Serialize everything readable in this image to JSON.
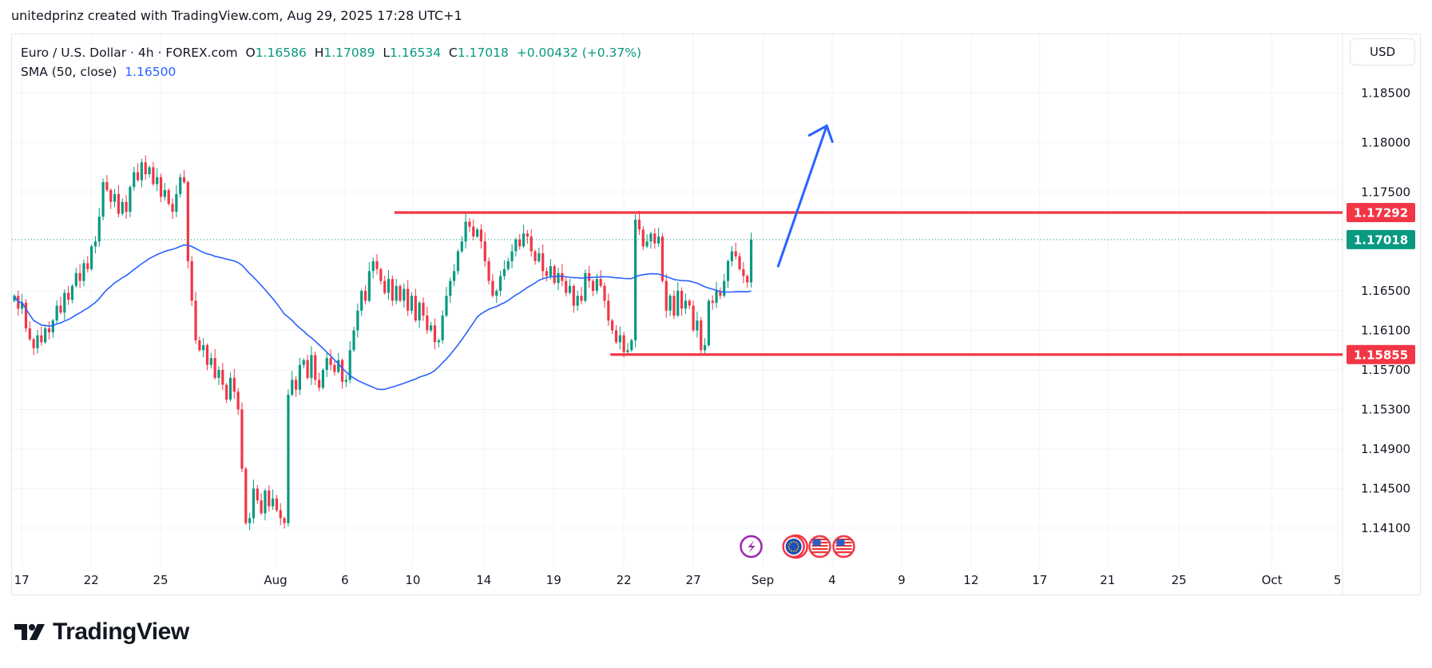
{
  "credit": "unitedprinz created with TradingView.com, Aug 29, 2025 17:28 UTC+1",
  "legend": {
    "symbol": "Euro / U.S. Dollar · 4h · FOREX.com",
    "o_label": "O",
    "o": "1.16586",
    "h_label": "H",
    "h": "1.17089",
    "l_label": "L",
    "l": "1.16534",
    "c_label": "C",
    "c": "1.17018",
    "change": "+0.00432 (+0.37%)",
    "sma_label": "SMA (50, close)",
    "sma_value": "1.16500"
  },
  "currency_button": "USD",
  "logo_text": "TradingView",
  "colors": {
    "up": "#089981",
    "down": "#f23645",
    "sma": "#2962ff",
    "level": "#f23645",
    "arrow": "#2962ff"
  },
  "chart_data": {
    "type": "candlestick",
    "title": "Euro / U.S. Dollar · 4h · FOREX.com",
    "first_open": 1.164,
    "closes": [
      1.1645,
      1.1632,
      1.1638,
      1.1612,
      1.1601,
      1.1592,
      1.1605,
      1.1598,
      1.1612,
      1.1608,
      1.162,
      1.1635,
      1.1628,
      1.1648,
      1.1641,
      1.1655,
      1.1668,
      1.166,
      1.1678,
      1.1672,
      1.1695,
      1.17,
      1.1725,
      1.176,
      1.1752,
      1.174,
      1.1748,
      1.1728,
      1.174,
      1.173,
      1.1755,
      1.177,
      1.1762,
      1.178,
      1.1768,
      1.1775,
      1.1758,
      1.1765,
      1.1745,
      1.1752,
      1.1738,
      1.173,
      1.1748,
      1.1765,
      1.176,
      1.168,
      1.164,
      1.16,
      1.159,
      1.1595,
      1.1575,
      1.1582,
      1.1562,
      1.157,
      1.1555,
      1.154,
      1.1562,
      1.1548,
      1.153,
      1.147,
      1.1415,
      1.142,
      1.145,
      1.1438,
      1.1425,
      1.1448,
      1.1432,
      1.144,
      1.1428,
      1.142,
      1.1415,
      1.1545,
      1.156,
      1.155,
      1.1575,
      1.158,
      1.1562,
      1.1585,
      1.156,
      1.1552,
      1.157,
      1.1582,
      1.1575,
      1.1568,
      1.158,
      1.1558,
      1.156,
      1.159,
      1.161,
      1.163,
      1.165,
      1.164,
      1.167,
      1.168,
      1.1672,
      1.166,
      1.1648,
      1.1662,
      1.164,
      1.1655,
      1.164,
      1.1652,
      1.163,
      1.1645,
      1.162,
      1.1638,
      1.1625,
      1.161,
      1.1615,
      1.1598,
      1.16,
      1.1625,
      1.1645,
      1.166,
      1.167,
      1.169,
      1.17,
      1.172,
      1.1715,
      1.1705,
      1.1712,
      1.17,
      1.168,
      1.166,
      1.1645,
      1.165,
      1.1665,
      1.1672,
      1.168,
      1.169,
      1.1702,
      1.1695,
      1.1708,
      1.1705,
      1.169,
      1.168,
      1.1688,
      1.167,
      1.1665,
      1.1675,
      1.1658,
      1.1668,
      1.166,
      1.1648,
      1.1655,
      1.1635,
      1.1645,
      1.164,
      1.1668,
      1.166,
      1.165,
      1.1662,
      1.1655,
      1.164,
      1.162,
      1.161,
      1.1598,
      1.1605,
      1.1588,
      1.159,
      1.16,
      1.1722,
      1.1712,
      1.1695,
      1.17,
      1.1708,
      1.1698,
      1.1705,
      1.166,
      1.163,
      1.1645,
      1.1625,
      1.165,
      1.1632,
      1.164,
      1.1635,
      1.161,
      1.162,
      1.159,
      1.1595,
      1.164,
      1.1638,
      1.165,
      1.1645,
      1.166,
      1.168,
      1.169,
      1.1685,
      1.1672,
      1.1665,
      1.16586,
      1.17018
    ],
    "last_candle": {
      "open": 1.16586,
      "high": 1.17089,
      "low": 1.16534,
      "close": 1.17018
    },
    "sma_period": 50,
    "y_ticks": [
      "1.18500",
      "1.18000",
      "1.17500",
      "1.16500",
      "1.16100",
      "1.15700",
      "1.15300",
      "1.14900",
      "1.14500",
      "1.14100"
    ],
    "x_ticks": [
      {
        "label": "17",
        "bar": 1.9
      },
      {
        "label": "22",
        "bar": 19.9
      },
      {
        "label": "25",
        "bar": 37.9
      },
      {
        "label": "Aug",
        "bar": 67.7
      },
      {
        "label": "6",
        "bar": 85.7
      },
      {
        "label": "10",
        "bar": 103.3
      },
      {
        "label": "14",
        "bar": 121.7
      },
      {
        "label": "19",
        "bar": 139.8
      },
      {
        "label": "22",
        "bar": 158
      },
      {
        "label": "27",
        "bar": 176
      },
      {
        "label": "Sep",
        "bar": 194
      },
      {
        "label": "4",
        "bar": 212
      },
      {
        "label": "9",
        "bar": 230
      },
      {
        "label": "12",
        "bar": 248
      },
      {
        "label": "17",
        "bar": 265.8
      },
      {
        "label": "21",
        "bar": 283.4
      },
      {
        "label": "25",
        "bar": 301.9
      },
      {
        "label": "Oct",
        "bar": 326
      },
      {
        "label": "5",
        "bar": 343
      }
    ],
    "resistance": {
      "price": 1.17292,
      "label": "1.17292",
      "from_bar": 98.5
    },
    "support": {
      "price": 1.15855,
      "label": "1.15855",
      "from_bar": 154.5
    },
    "last_price_label": "1.17018",
    "projection_arrow": {
      "from_bar": 198,
      "from_price": 1.1675,
      "to_bar": 210.6,
      "to_price": 1.1817
    },
    "event_icons": [
      {
        "type": "lightning-event",
        "bar": 191
      },
      {
        "type": "eu-flag-event",
        "bar": 202
      },
      {
        "type": "us-flag-event",
        "bar": 208.8
      },
      {
        "type": "us-flag-event",
        "bar": 215
      }
    ]
  }
}
